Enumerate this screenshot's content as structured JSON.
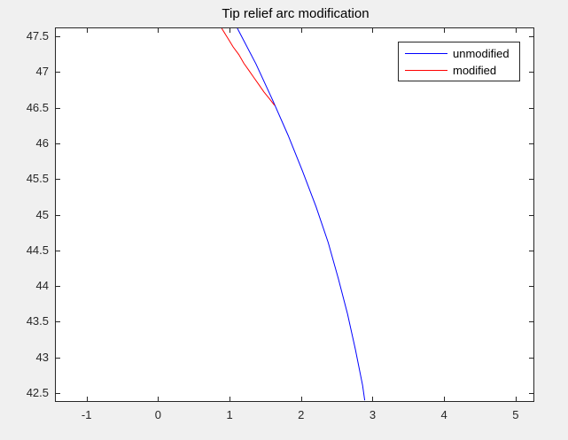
{
  "figure": {
    "background_color": "#f0f0f0",
    "axes_background_color": "#ffffff",
    "axes_line_color": "#262626",
    "tick_label_color": "#262626"
  },
  "chart_data": {
    "type": "line",
    "title": "Tip relief arc modification",
    "xlabel": "",
    "ylabel": "",
    "xlim": [
      -1.43,
      5.25
    ],
    "ylim": [
      42.39,
      47.61
    ],
    "x_ticks": [
      -1,
      0,
      1,
      2,
      3,
      4,
      5
    ],
    "y_ticks": [
      42.5,
      43,
      43.5,
      44,
      44.5,
      45,
      45.5,
      46,
      46.5,
      47,
      47.5
    ],
    "grid": false,
    "legend_position": "northeast",
    "series": [
      {
        "name": "unmodified",
        "color": "#0000ff",
        "points": [
          [
            1.11,
            47.61
          ],
          [
            1.37,
            47.11
          ],
          [
            1.6,
            46.61
          ],
          [
            1.82,
            46.11
          ],
          [
            2.02,
            45.61
          ],
          [
            2.21,
            45.11
          ],
          [
            2.38,
            44.61
          ],
          [
            2.52,
            44.11
          ],
          [
            2.65,
            43.61
          ],
          [
            2.76,
            43.11
          ],
          [
            2.86,
            42.61
          ],
          [
            2.89,
            42.4
          ]
        ]
      },
      {
        "name": "modified",
        "color": "#ff0000",
        "points": [
          [
            0.89,
            47.61
          ],
          [
            0.97,
            47.48
          ],
          [
            1.05,
            47.35
          ],
          [
            1.13,
            47.24
          ],
          [
            1.2,
            47.12
          ],
          [
            1.27,
            47.02
          ],
          [
            1.34,
            46.92
          ],
          [
            1.41,
            46.82
          ],
          [
            1.48,
            46.72
          ],
          [
            1.56,
            46.62
          ],
          [
            1.63,
            46.53
          ]
        ]
      }
    ]
  }
}
